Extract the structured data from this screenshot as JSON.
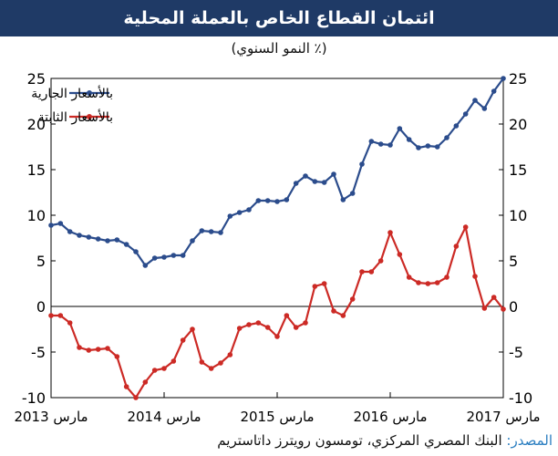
{
  "title": "ائتمان القطاع الخاص بالعملة المحلية",
  "subtitle": "(٪ النمو السنوي)",
  "source_label": "المصدر:",
  "source_text": "البنك المصري المركزي، تومسون رويترز داتاستريم",
  "colors": {
    "title_bg": "#1f3a66",
    "current": "#2b4c8c",
    "constant": "#cc2a25",
    "source_label": "#2c7fc1"
  },
  "chart_data": {
    "type": "line",
    "xlabel": "",
    "ylabel": "",
    "ylim": [
      -10,
      25
    ],
    "yticks": [
      -10,
      -5,
      0,
      5,
      10,
      15,
      20,
      25
    ],
    "x": [
      0,
      1,
      2,
      3,
      4,
      5,
      6,
      7,
      8,
      9,
      10,
      11,
      12,
      13,
      14,
      15,
      16,
      17,
      18,
      19,
      20,
      21,
      22,
      23,
      24,
      25,
      26,
      27,
      28,
      29,
      30,
      31,
      32,
      33,
      34,
      35,
      36,
      37,
      38,
      39,
      40,
      41,
      42,
      43,
      44,
      45,
      46,
      47,
      48
    ],
    "xlim": [
      0,
      48
    ],
    "x_tick_positions": [
      0,
      12,
      24,
      36,
      48
    ],
    "x_tick_labels": [
      "مارس 2013",
      "مارس 2014",
      "مارس 2015",
      "مارس 2016",
      "مارس 2017"
    ],
    "legend_position": "top-left",
    "grid": false,
    "series": [
      {
        "name": "بالأسعار الجارية",
        "color": "#2b4c8c",
        "values": [
          8.9,
          9.1,
          8.2,
          7.8,
          7.6,
          7.4,
          7.2,
          7.3,
          6.8,
          6.0,
          4.5,
          5.3,
          5.4,
          5.6,
          5.6,
          7.2,
          8.3,
          8.2,
          8.1,
          9.9,
          10.3,
          10.6,
          11.6,
          11.6,
          11.5,
          11.7,
          13.5,
          14.3,
          13.7,
          13.6,
          14.5,
          11.7,
          12.4,
          15.6,
          18.1,
          17.8,
          17.7,
          19.5,
          18.3,
          17.4,
          17.6,
          17.5,
          18.5,
          19.8,
          21.1,
          22.6,
          21.7,
          23.6,
          25.0
        ]
      },
      {
        "name": "بالأسعار الثابتة",
        "color": "#cc2a25",
        "values": [
          -1.0,
          -1.0,
          -1.8,
          -4.5,
          -4.8,
          -4.7,
          -4.6,
          -5.5,
          -8.8,
          -10.0,
          -8.3,
          -7.0,
          -6.8,
          -6.0,
          -3.7,
          -2.5,
          -6.1,
          -6.8,
          -6.2,
          -5.3,
          -2.4,
          -2.0,
          -1.8,
          -2.3,
          -3.3,
          -1.0,
          -2.3,
          -1.8,
          2.2,
          2.5,
          -0.5,
          -1.0,
          0.8,
          3.8,
          3.8,
          5.0,
          8.1,
          5.7,
          3.2,
          2.6,
          2.5,
          2.6,
          3.2,
          6.6,
          8.7,
          3.3,
          -0.2,
          1.0,
          -0.3
        ]
      }
    ]
  }
}
